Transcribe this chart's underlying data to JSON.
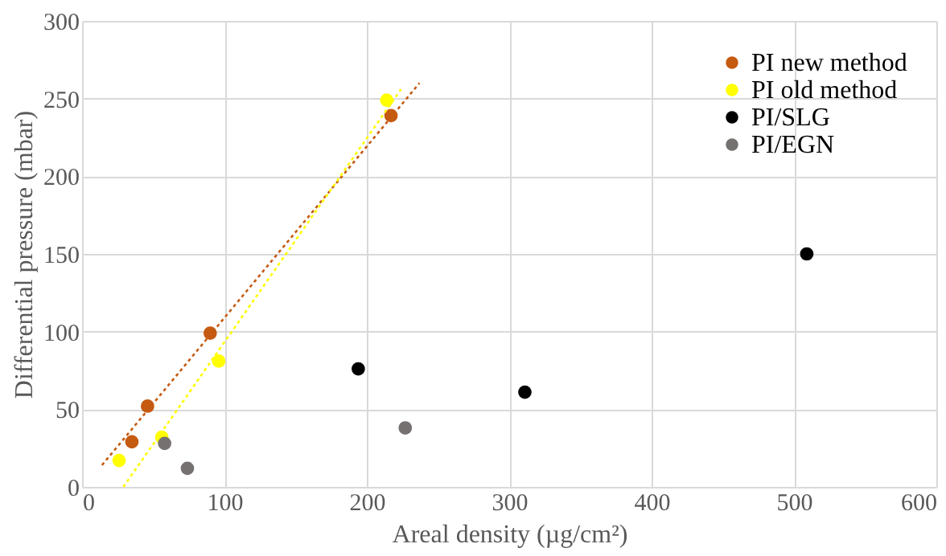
{
  "chart_data": {
    "type": "scatter",
    "xlabel": "Areal density (µg/cm²)",
    "ylabel": "Differential pressure (mbar)",
    "xlim": [
      0,
      600
    ],
    "xticks": [
      0,
      100,
      200,
      300,
      400,
      500,
      600
    ],
    "ylim": [
      0,
      300
    ],
    "yticks": [
      0,
      50,
      100,
      150,
      200,
      250,
      300
    ],
    "grid": true,
    "legend": "top right",
    "marker": "circle",
    "series": [
      {
        "name": "PI new method",
        "color": "#c55a11",
        "x": [
          35,
          46,
          90,
          217
        ],
        "values": [
          29,
          52,
          99,
          239
        ]
      },
      {
        "name": "PI old method",
        "color": "#ffff00",
        "x": [
          26,
          56,
          96,
          214
        ],
        "values": [
          17,
          32,
          81,
          249
        ]
      },
      {
        "name": "PI/SLG",
        "color": "#000000",
        "x": [
          194,
          311,
          509
        ],
        "values": [
          76,
          61,
          150
        ]
      },
      {
        "name": "PI/EGN",
        "color": "#767171",
        "x": [
          58,
          74,
          227
        ],
        "values": [
          28,
          12,
          38
        ]
      },
      {
        "type": "line",
        "marker": "none",
        "line_style": "dotted",
        "color": "#c55a11",
        "x": [
          14,
          237
        ],
        "values": [
          14,
          260
        ]
      },
      {
        "type": "line",
        "marker": "none",
        "line_style": "dotted",
        "color": "#ffff00",
        "x": [
          29,
          224
        ],
        "values": [
          0,
          256
        ]
      }
    ]
  }
}
